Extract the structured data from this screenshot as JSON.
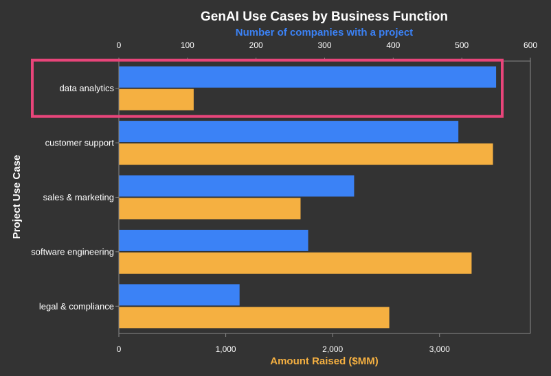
{
  "chart_data": {
    "type": "bar",
    "orientation": "horizontal",
    "title": "GenAI Use Cases by Business Function",
    "ylabel": "Project Use Case",
    "categories": [
      "data analytics",
      "customer support",
      "sales & marketing",
      "software engineering",
      "legal & compliance"
    ],
    "series": [
      {
        "name": "Number of companies with a project",
        "axis": "top",
        "color": "#3b82f6",
        "values": [
          550,
          495,
          343,
          276,
          176
        ]
      },
      {
        "name": "Amount Raised ($MM)",
        "axis": "bottom",
        "color": "#f5b041",
        "values": [
          700,
          3500,
          1700,
          3300,
          2530
        ]
      }
    ],
    "top_axis": {
      "label": "Number of companies with a project",
      "range": [
        0,
        600
      ],
      "ticks": [
        0,
        100,
        200,
        300,
        400,
        500,
        600
      ],
      "tick_labels": [
        "0",
        "100",
        "200",
        "300",
        "400",
        "500",
        "600"
      ]
    },
    "bottom_axis": {
      "label": "Amount Raised ($MM)",
      "range": [
        0,
        3850
      ],
      "ticks": [
        0,
        1000,
        2000,
        3000
      ],
      "tick_labels": [
        "0",
        "1,000",
        "2,000",
        "3,000"
      ]
    },
    "highlight": {
      "category": "data analytics",
      "color": "#e8457a"
    },
    "grid": false
  }
}
